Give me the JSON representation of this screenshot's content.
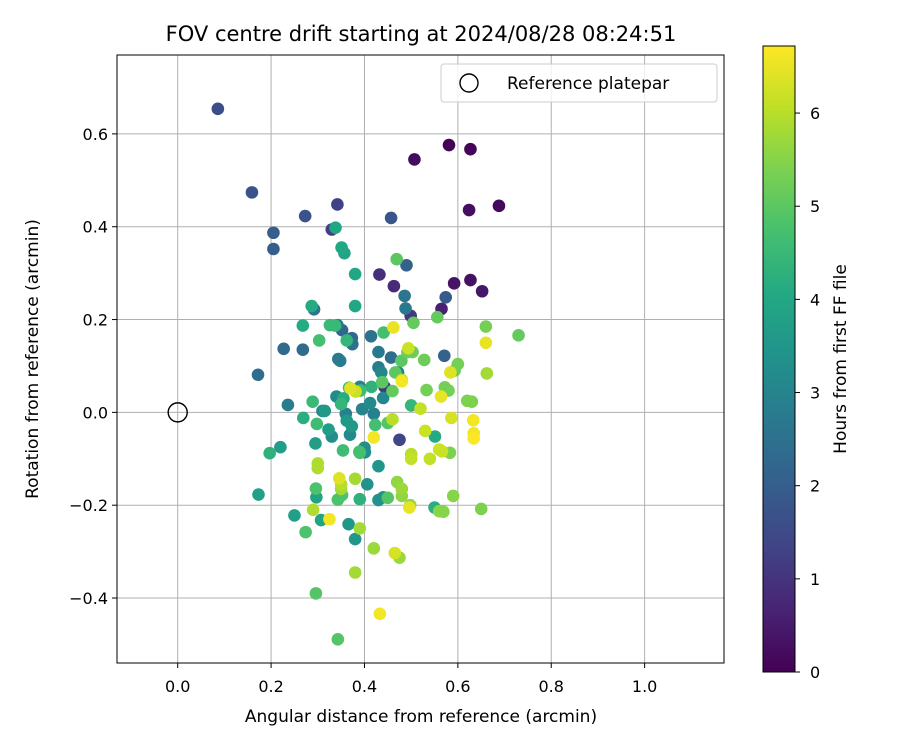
{
  "chart_data": {
    "type": "scatter",
    "title": "FOV centre drift starting at 2024/08/28 08:24:51",
    "xlabel": "Angular distance from reference (arcmin)",
    "ylabel": "Rotation from reference (arcmin)",
    "xlim": [
      -0.13,
      1.17
    ],
    "ylim": [
      -0.54,
      0.77
    ],
    "xticks": [
      0.0,
      0.2,
      0.4,
      0.6,
      0.8,
      1.0
    ],
    "xtick_labels": [
      "0.0",
      "0.2",
      "0.4",
      "0.6",
      "0.8",
      "1.0"
    ],
    "yticks": [
      -0.4,
      -0.2,
      0.0,
      0.2,
      0.4,
      0.6
    ],
    "ytick_labels": [
      "−0.4",
      "−0.2",
      "0.0",
      "0.2",
      "0.4",
      "0.6"
    ],
    "grid": true,
    "legend": {
      "position": "top-right",
      "entries": [
        "Reference platepar"
      ]
    },
    "reference_point": {
      "x": 0.0,
      "y": 0.0,
      "label": "Reference platepar"
    },
    "colorbar": {
      "label": "Hours from first FF file",
      "min": 0,
      "max": 6.72,
      "ticks": [
        0,
        1,
        2,
        3,
        4,
        5,
        6
      ],
      "tick_labels": [
        "0",
        "1",
        "2",
        "3",
        "4",
        "5",
        "6"
      ],
      "colormap": "viridis"
    },
    "points": [
      {
        "x": 0.581,
        "y": 0.576,
        "c": 0.05
      },
      {
        "x": 0.627,
        "y": 0.567,
        "c": 0.1
      },
      {
        "x": 0.507,
        "y": 0.545,
        "c": 0.2
      },
      {
        "x": 0.688,
        "y": 0.445,
        "c": 0.15
      },
      {
        "x": 0.624,
        "y": 0.436,
        "c": 0.25
      },
      {
        "x": 0.627,
        "y": 0.285,
        "c": 0.3
      },
      {
        "x": 0.592,
        "y": 0.278,
        "c": 0.35
      },
      {
        "x": 0.652,
        "y": 0.261,
        "c": 0.4
      },
      {
        "x": 0.565,
        "y": 0.223,
        "c": 0.6
      },
      {
        "x": 0.463,
        "y": 0.272,
        "c": 0.8
      },
      {
        "x": 0.432,
        "y": 0.297,
        "c": 0.9
      },
      {
        "x": 0.443,
        "y": 0.055,
        "c": 1.1
      },
      {
        "x": 0.499,
        "y": 0.208,
        "c": 1.1
      },
      {
        "x": 0.33,
        "y": 0.394,
        "c": 1.2
      },
      {
        "x": 0.342,
        "y": 0.448,
        "c": 1.3
      },
      {
        "x": 0.475,
        "y": -0.059,
        "c": 1.4
      },
      {
        "x": 0.086,
        "y": 0.654,
        "c": 1.6
      },
      {
        "x": 0.159,
        "y": 0.474,
        "c": 1.7
      },
      {
        "x": 0.273,
        "y": 0.423,
        "c": 1.7
      },
      {
        "x": 0.457,
        "y": 0.419,
        "c": 1.8
      },
      {
        "x": 0.574,
        "y": 0.248,
        "c": 1.9
      },
      {
        "x": 0.205,
        "y": 0.387,
        "c": 2.0
      },
      {
        "x": 0.205,
        "y": 0.352,
        "c": 2.0
      },
      {
        "x": 0.49,
        "y": 0.317,
        "c": 2.1
      },
      {
        "x": 0.571,
        "y": 0.122,
        "c": 2.1
      },
      {
        "x": 0.373,
        "y": 0.16,
        "c": 2.2
      },
      {
        "x": 0.352,
        "y": 0.177,
        "c": 2.2
      },
      {
        "x": 0.227,
        "y": 0.137,
        "c": 2.3
      },
      {
        "x": 0.268,
        "y": 0.135,
        "c": 2.3
      },
      {
        "x": 0.172,
        "y": 0.081,
        "c": 2.4
      },
      {
        "x": 0.457,
        "y": 0.118,
        "c": 2.4
      },
      {
        "x": 0.374,
        "y": 0.147,
        "c": 2.5
      },
      {
        "x": 0.414,
        "y": 0.164,
        "c": 2.5
      },
      {
        "x": 0.486,
        "y": 0.251,
        "c": 2.6
      },
      {
        "x": 0.342,
        "y": 0.188,
        "c": 2.6
      },
      {
        "x": 0.292,
        "y": 0.222,
        "c": 2.6
      },
      {
        "x": 0.43,
        "y": 0.13,
        "c": 2.7
      },
      {
        "x": 0.488,
        "y": 0.224,
        "c": 2.7
      },
      {
        "x": 0.344,
        "y": 0.115,
        "c": 2.7
      },
      {
        "x": 0.348,
        "y": 0.111,
        "c": 2.8
      },
      {
        "x": 0.236,
        "y": 0.016,
        "c": 2.8
      },
      {
        "x": 0.43,
        "y": 0.097,
        "c": 2.8
      },
      {
        "x": 0.36,
        "y": -0.003,
        "c": 2.9
      },
      {
        "x": 0.42,
        "y": -0.003,
        "c": 2.9
      },
      {
        "x": 0.395,
        "y": 0.007,
        "c": 3.0
      },
      {
        "x": 0.472,
        "y": 0.086,
        "c": 3.0
      },
      {
        "x": 0.39,
        "y": 0.055,
        "c": 3.0
      },
      {
        "x": 0.436,
        "y": 0.086,
        "c": 3.1
      },
      {
        "x": 0.44,
        "y": 0.031,
        "c": 3.1
      },
      {
        "x": 0.31,
        "y": 0.003,
        "c": 3.1
      },
      {
        "x": 0.34,
        "y": 0.034,
        "c": 3.2
      },
      {
        "x": 0.369,
        "y": -0.048,
        "c": 3.2
      },
      {
        "x": 0.412,
        "y": 0.02,
        "c": 3.2
      },
      {
        "x": 0.33,
        "y": -0.052,
        "c": 3.3
      },
      {
        "x": 0.4,
        "y": -0.076,
        "c": 3.3
      },
      {
        "x": 0.401,
        "y": -0.086,
        "c": 3.3
      },
      {
        "x": 0.406,
        "y": -0.155,
        "c": 3.4
      },
      {
        "x": 0.43,
        "y": -0.189,
        "c": 3.4
      },
      {
        "x": 0.44,
        "y": -0.183,
        "c": 3.4
      },
      {
        "x": 0.38,
        "y": -0.273,
        "c": 3.5
      },
      {
        "x": 0.366,
        "y": -0.241,
        "c": 3.5
      },
      {
        "x": 0.43,
        "y": -0.116,
        "c": 3.5
      },
      {
        "x": 0.373,
        "y": -0.03,
        "c": 3.6
      },
      {
        "x": 0.315,
        "y": 0.003,
        "c": 3.6
      },
      {
        "x": 0.362,
        "y": -0.018,
        "c": 3.6
      },
      {
        "x": 0.22,
        "y": -0.075,
        "c": 3.7
      },
      {
        "x": 0.295,
        "y": -0.067,
        "c": 3.7
      },
      {
        "x": 0.323,
        "y": -0.037,
        "c": 3.7
      },
      {
        "x": 0.25,
        "y": -0.222,
        "c": 3.8
      },
      {
        "x": 0.173,
        "y": -0.177,
        "c": 3.8
      },
      {
        "x": 0.297,
        "y": -0.183,
        "c": 3.9
      },
      {
        "x": 0.307,
        "y": -0.232,
        "c": 3.9
      },
      {
        "x": 0.357,
        "y": 0.343,
        "c": 3.9
      },
      {
        "x": 0.351,
        "y": 0.355,
        "c": 4.0
      },
      {
        "x": 0.338,
        "y": 0.398,
        "c": 4.0
      },
      {
        "x": 0.38,
        "y": 0.229,
        "c": 4.0
      },
      {
        "x": 0.38,
        "y": 0.298,
        "c": 4.0
      },
      {
        "x": 0.355,
        "y": 0.03,
        "c": 4.1
      },
      {
        "x": 0.268,
        "y": 0.187,
        "c": 4.1
      },
      {
        "x": 0.287,
        "y": 0.229,
        "c": 4.1
      },
      {
        "x": 0.551,
        "y": -0.052,
        "c": 4.1
      },
      {
        "x": 0.55,
        "y": -0.205,
        "c": 4.2
      },
      {
        "x": 0.269,
        "y": -0.012,
        "c": 4.2
      },
      {
        "x": 0.197,
        "y": -0.088,
        "c": 4.3
      },
      {
        "x": 0.39,
        "y": -0.187,
        "c": 4.3
      },
      {
        "x": 0.415,
        "y": 0.055,
        "c": 4.3
      },
      {
        "x": 0.5,
        "y": 0.015,
        "c": 4.4
      },
      {
        "x": 0.362,
        "y": 0.155,
        "c": 4.4
      },
      {
        "x": 0.35,
        "y": 0.018,
        "c": 4.4
      },
      {
        "x": 0.326,
        "y": 0.188,
        "c": 4.5
      },
      {
        "x": 0.337,
        "y": 0.187,
        "c": 4.5
      },
      {
        "x": 0.289,
        "y": 0.023,
        "c": 4.5
      },
      {
        "x": 0.298,
        "y": -0.025,
        "c": 4.6
      },
      {
        "x": 0.367,
        "y": 0.053,
        "c": 4.6
      },
      {
        "x": 0.354,
        "y": -0.082,
        "c": 4.6
      },
      {
        "x": 0.391,
        "y": 0.047,
        "c": 4.6
      },
      {
        "x": 0.303,
        "y": 0.155,
        "c": 4.7
      },
      {
        "x": 0.441,
        "y": 0.172,
        "c": 4.7
      },
      {
        "x": 0.389,
        "y": -0.085,
        "c": 4.7
      },
      {
        "x": 0.39,
        "y": -0.087,
        "c": 4.7
      },
      {
        "x": 0.423,
        "y": -0.027,
        "c": 4.7
      },
      {
        "x": 0.352,
        "y": -0.178,
        "c": 4.8
      },
      {
        "x": 0.343,
        "y": -0.188,
        "c": 4.8
      },
      {
        "x": 0.296,
        "y": -0.164,
        "c": 4.8
      },
      {
        "x": 0.274,
        "y": -0.258,
        "c": 4.8
      },
      {
        "x": 0.296,
        "y": -0.39,
        "c": 4.9
      },
      {
        "x": 0.343,
        "y": -0.489,
        "c": 4.9
      },
      {
        "x": 0.45,
        "y": -0.184,
        "c": 4.9
      },
      {
        "x": 0.45,
        "y": -0.023,
        "c": 4.9
      },
      {
        "x": 0.479,
        "y": 0.111,
        "c": 5.0
      },
      {
        "x": 0.466,
        "y": 0.086,
        "c": 5.0
      },
      {
        "x": 0.469,
        "y": 0.33,
        "c": 5.0
      },
      {
        "x": 0.438,
        "y": 0.065,
        "c": 5.0
      },
      {
        "x": 0.46,
        "y": 0.046,
        "c": 5.1
      },
      {
        "x": 0.556,
        "y": 0.205,
        "c": 5.1
      },
      {
        "x": 0.505,
        "y": 0.193,
        "c": 5.1
      },
      {
        "x": 0.528,
        "y": 0.113,
        "c": 5.2
      },
      {
        "x": 0.492,
        "y": 0.13,
        "c": 5.2
      },
      {
        "x": 0.503,
        "y": 0.13,
        "c": 5.2
      },
      {
        "x": 0.593,
        "y": 0.09,
        "c": 5.2
      },
      {
        "x": 0.6,
        "y": 0.104,
        "c": 5.3
      },
      {
        "x": 0.58,
        "y": 0.047,
        "c": 5.3
      },
      {
        "x": 0.533,
        "y": 0.048,
        "c": 5.3
      },
      {
        "x": 0.572,
        "y": 0.054,
        "c": 5.3
      },
      {
        "x": 0.63,
        "y": 0.023,
        "c": 5.4
      },
      {
        "x": 0.583,
        "y": -0.087,
        "c": 5.4
      },
      {
        "x": 0.62,
        "y": 0.025,
        "c": 5.4
      },
      {
        "x": 0.65,
        "y": -0.208,
        "c": 5.4
      },
      {
        "x": 0.59,
        "y": -0.18,
        "c": 5.5
      },
      {
        "x": 0.569,
        "y": -0.214,
        "c": 5.5
      },
      {
        "x": 0.56,
        "y": -0.213,
        "c": 5.5
      },
      {
        "x": 0.498,
        "y": -0.2,
        "c": 5.6
      },
      {
        "x": 0.48,
        "y": -0.18,
        "c": 5.6
      },
      {
        "x": 0.47,
        "y": -0.15,
        "c": 5.6
      },
      {
        "x": 0.48,
        "y": -0.165,
        "c": 5.7
      },
      {
        "x": 0.475,
        "y": -0.313,
        "c": 5.7
      },
      {
        "x": 0.42,
        "y": -0.293,
        "c": 5.7
      },
      {
        "x": 0.38,
        "y": -0.345,
        "c": 5.8
      },
      {
        "x": 0.39,
        "y": -0.25,
        "c": 5.8
      },
      {
        "x": 0.38,
        "y": -0.143,
        "c": 5.8
      },
      {
        "x": 0.35,
        "y": -0.165,
        "c": 5.8
      },
      {
        "x": 0.29,
        "y": -0.21,
        "c": 5.9
      },
      {
        "x": 0.3,
        "y": -0.12,
        "c": 5.9
      },
      {
        "x": 0.3,
        "y": -0.11,
        "c": 5.9
      },
      {
        "x": 0.35,
        "y": -0.155,
        "c": 6.0
      },
      {
        "x": 0.48,
        "y": 0.07,
        "c": 6.0
      },
      {
        "x": 0.46,
        "y": -0.015,
        "c": 6.0
      },
      {
        "x": 0.5,
        "y": -0.09,
        "c": 6.0
      },
      {
        "x": 0.5,
        "y": -0.1,
        "c": 6.1
      },
      {
        "x": 0.52,
        "y": 0.008,
        "c": 6.1
      },
      {
        "x": 0.54,
        "y": -0.1,
        "c": 6.1
      },
      {
        "x": 0.56,
        "y": -0.08,
        "c": 6.2
      },
      {
        "x": 0.53,
        "y": -0.04,
        "c": 6.2
      },
      {
        "x": 0.66,
        "y": 0.185,
        "c": 5.3
      },
      {
        "x": 0.73,
        "y": 0.166,
        "c": 5.1
      },
      {
        "x": 0.662,
        "y": 0.084,
        "c": 5.8
      },
      {
        "x": 0.66,
        "y": 0.15,
        "c": 6.5
      },
      {
        "x": 0.584,
        "y": 0.086,
        "c": 6.4
      },
      {
        "x": 0.564,
        "y": 0.034,
        "c": 6.5
      },
      {
        "x": 0.586,
        "y": -0.012,
        "c": 6.3
      },
      {
        "x": 0.633,
        "y": -0.017,
        "c": 6.6
      },
      {
        "x": 0.634,
        "y": -0.045,
        "c": 6.6
      },
      {
        "x": 0.634,
        "y": -0.056,
        "c": 6.7
      },
      {
        "x": 0.462,
        "y": 0.183,
        "c": 6.5
      },
      {
        "x": 0.494,
        "y": 0.138,
        "c": 6.2
      },
      {
        "x": 0.48,
        "y": 0.067,
        "c": 6.6
      },
      {
        "x": 0.381,
        "y": 0.045,
        "c": 6.2
      },
      {
        "x": 0.37,
        "y": 0.052,
        "c": 6.4
      },
      {
        "x": 0.42,
        "y": -0.054,
        "c": 6.6
      },
      {
        "x": 0.346,
        "y": -0.142,
        "c": 6.4
      },
      {
        "x": 0.325,
        "y": -0.23,
        "c": 6.6
      },
      {
        "x": 0.465,
        "y": -0.303,
        "c": 6.3
      },
      {
        "x": 0.433,
        "y": -0.434,
        "c": 6.6
      },
      {
        "x": 0.496,
        "y": -0.205,
        "c": 6.5
      },
      {
        "x": 0.566,
        "y": -0.084,
        "c": 6.2
      }
    ]
  }
}
